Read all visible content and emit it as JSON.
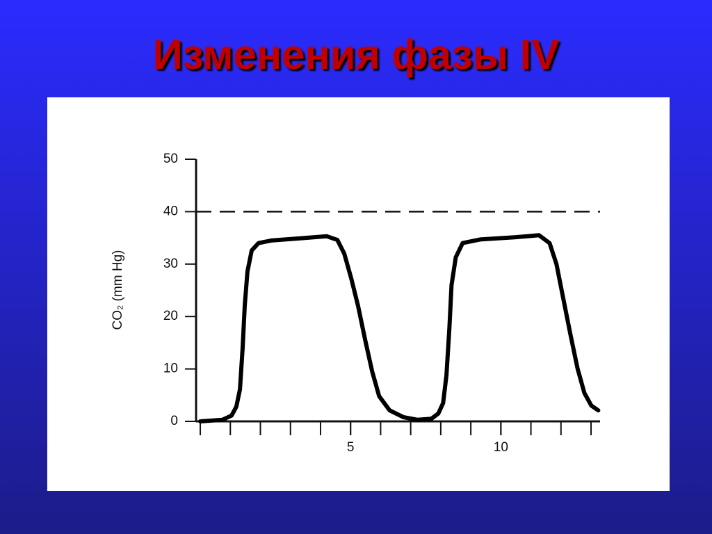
{
  "title": "Изменения фазы IV",
  "chart_data": {
    "type": "line",
    "ylabel": "CO₂ (mm Hg)",
    "x": [
      0,
      0.74,
      1.04,
      1.2,
      1.32,
      1.41,
      1.48,
      1.57,
      1.71,
      1.94,
      2.36,
      3.29,
      4.21,
      4.56,
      4.79,
      5.02,
      5.25,
      5.49,
      5.72,
      5.95,
      6.3,
      6.76,
      7.22,
      7.69,
      7.92,
      8.08,
      8.19,
      8.29,
      8.36,
      8.5,
      8.73,
      9.31,
      10.46,
      11.27,
      11.62,
      11.85,
      12.08,
      12.31,
      12.55,
      12.78,
      13.01,
      13.24
    ],
    "values": [
      0,
      0.3,
      1.1,
      2.8,
      6.1,
      14.1,
      22.1,
      28.6,
      32.6,
      34,
      34.5,
      34.9,
      35.3,
      34.6,
      32,
      27.3,
      22,
      15.4,
      9.5,
      4.8,
      2.1,
      0.8,
      0.3,
      0.5,
      1.5,
      3.5,
      8.8,
      18,
      26,
      31.3,
      34,
      34.7,
      35.1,
      35.5,
      34,
      30,
      23.3,
      16.7,
      10.1,
      5.4,
      3,
      2.1
    ],
    "color": "#000000",
    "xlim": [
      -0.14,
      13.3
    ],
    "ylim": [
      0,
      50
    ],
    "xticks": [
      5,
      10
    ],
    "xminorticks": [
      0,
      1,
      2,
      3,
      4,
      5,
      6,
      7,
      8,
      9,
      10,
      11,
      12,
      13
    ],
    "yticks": [
      0,
      10,
      20,
      30,
      40,
      50
    ],
    "reference_line": 40
  }
}
